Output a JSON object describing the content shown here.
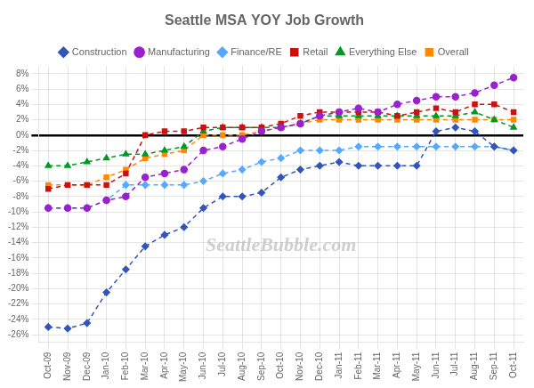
{
  "chart_data": {
    "type": "line",
    "title": "Seattle MSA YOY Job Growth",
    "categories": [
      "Oct-09",
      "Nov-09",
      "Dec-09",
      "Jan-10",
      "Feb-10",
      "Mar-10",
      "Apr-10",
      "May-10",
      "Jun-10",
      "Jul-10",
      "Aug-10",
      "Sep-10",
      "Oct-10",
      "Nov-10",
      "Dec-10",
      "Jan-11",
      "Feb-11",
      "Mar-11",
      "Apr-11",
      "May-11",
      "Jun-11",
      "Jul-11",
      "Aug-11",
      "Sep-11",
      "Oct-11"
    ],
    "series": [
      {
        "name": "Construction",
        "color": "#3355bb",
        "marker": "diamond",
        "line_style": "dashed",
        "values": [
          -25.0,
          -25.2,
          -24.5,
          -20.5,
          -17.5,
          -14.5,
          -13.0,
          -12.0,
          -9.5,
          -8.0,
          -8.0,
          -7.5,
          -5.5,
          -4.5,
          -4.0,
          -3.5,
          -4.0,
          -4.0,
          -4.0,
          -4.0,
          0.5,
          1.0,
          0.5,
          -1.5,
          -2.0
        ]
      },
      {
        "name": "Manufacturing",
        "color": "#9922cc",
        "marker": "circle",
        "line_style": "dashed",
        "values": [
          -9.5,
          -9.5,
          -9.5,
          -8.5,
          -8.0,
          -5.5,
          -5.0,
          -4.5,
          -2.0,
          -1.5,
          -0.5,
          0.5,
          1.0,
          1.5,
          2.5,
          3.0,
          3.5,
          3.0,
          4.0,
          4.5,
          5.0,
          5.0,
          5.5,
          6.5,
          7.5
        ]
      },
      {
        "name": "Finance/RE",
        "color": "#55aaff",
        "marker": "diamond",
        "line_style": "dashed",
        "values": [
          -9.5,
          -9.5,
          -9.5,
          -8.5,
          -6.5,
          -6.5,
          -6.5,
          -6.5,
          -6.0,
          -5.0,
          -4.5,
          -3.5,
          -3.0,
          -2.0,
          -2.0,
          -2.0,
          -1.5,
          -1.5,
          -1.5,
          -1.5,
          -1.5,
          -1.5,
          -1.5,
          -1.5,
          -2.0
        ]
      },
      {
        "name": "Retail",
        "color": "#cc1111",
        "marker": "square",
        "line_style": "dashed",
        "values": [
          -7.0,
          -6.5,
          -6.5,
          -6.5,
          -5.0,
          0.0,
          0.5,
          0.5,
          1.0,
          1.0,
          1.0,
          1.0,
          1.5,
          2.5,
          3.0,
          3.0,
          3.0,
          3.0,
          2.5,
          3.0,
          3.5,
          3.0,
          4.0,
          4.0,
          3.0
        ]
      },
      {
        "name": "Everything Else",
        "color": "#009922",
        "marker": "triangle",
        "line_style": "dashed",
        "values": [
          -4.0,
          -4.0,
          -3.5,
          -3.0,
          -2.5,
          -2.5,
          -2.0,
          -1.5,
          0.5,
          1.0,
          1.0,
          1.0,
          1.0,
          1.5,
          2.5,
          2.5,
          2.5,
          2.5,
          2.5,
          2.5,
          2.5,
          2.5,
          3.0,
          2.0,
          1.0
        ]
      },
      {
        "name": "Overall",
        "color": "#ff8800",
        "marker": "square",
        "line_style": "dashed",
        "values": [
          -6.5,
          -6.5,
          -6.5,
          -5.5,
          -4.5,
          -3.0,
          -2.5,
          -2.0,
          0.0,
          0.0,
          0.0,
          0.5,
          1.0,
          1.5,
          2.0,
          2.0,
          2.0,
          2.0,
          2.0,
          2.0,
          2.0,
          2.0,
          2.0,
          2.0,
          2.0
        ]
      }
    ],
    "ylim": [
      -27,
      9
    ],
    "yticks": [
      {
        "value": -26,
        "label": "-26%"
      },
      {
        "value": -24,
        "label": "-24%"
      },
      {
        "value": -22,
        "label": "-22%"
      },
      {
        "value": -20,
        "label": "-20%"
      },
      {
        "value": -18,
        "label": "-18%"
      },
      {
        "value": -16,
        "label": "-16%"
      },
      {
        "value": -14,
        "label": "-14%"
      },
      {
        "value": -12,
        "label": "-12%"
      },
      {
        "value": -10,
        "label": "-10%"
      },
      {
        "value": -8,
        "label": "-8%"
      },
      {
        "value": -6,
        "label": "-6%"
      },
      {
        "value": -4,
        "label": "-4%"
      },
      {
        "value": -2,
        "label": "-2%"
      },
      {
        "value": 0,
        "label": "0%"
      },
      {
        "value": 2,
        "label": "2%"
      },
      {
        "value": 4,
        "label": "4%"
      },
      {
        "value": 6,
        "label": "6%"
      },
      {
        "value": 8,
        "label": "8%"
      }
    ],
    "annotations": [
      "SeattleBubble.com"
    ],
    "grid": true,
    "legend": "top"
  }
}
